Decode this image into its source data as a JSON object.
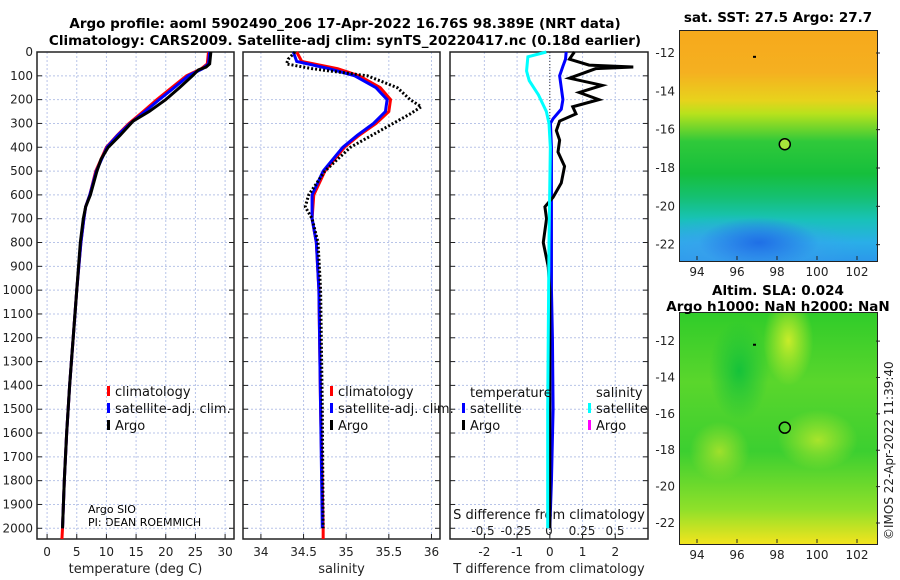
{
  "title": {
    "line1": "Argo profile: aoml 5902490_206 17-Apr-2022 16.76S 98.389E (NRT data)",
    "line2": "Climatology: CARS2009. Satellite-adj clim: synTS_20220417.nc (0.18d earlier)"
  },
  "credit": {
    "line1": "Argo SIO",
    "line2": "PI: DEAN ROEMMICH"
  },
  "copyright": "©IMOS 22-Apr-2022 11:39:40",
  "colors": {
    "climatology": "#ff0000",
    "satellite": "#0000ff",
    "argo": "#000000",
    "sal_satellite": "#00ffff",
    "sal_argo": "#ff00ff",
    "grid": "#b8c4e8"
  },
  "chart_data": [
    {
      "type": "line",
      "name": "temperature",
      "xlabel": "temperature (deg C)",
      "ylabel": "depth",
      "xlim": [
        -1.7,
        31.5
      ],
      "ylim": [
        2045,
        0
      ],
      "xticks": [
        0,
        5,
        10,
        15,
        20,
        25,
        30
      ],
      "yticks": [
        0,
        100,
        200,
        300,
        400,
        500,
        600,
        700,
        800,
        900,
        1000,
        1100,
        1200,
        1300,
        1400,
        1500,
        1600,
        1700,
        1800,
        1900,
        2000
      ],
      "legend": [
        "climatology",
        "satellite-adj. clim.",
        "Argo"
      ],
      "series": [
        {
          "name": "climatology",
          "depth": [
            0,
            50,
            70,
            100,
            150,
            200,
            250,
            300,
            350,
            400,
            500,
            600,
            650,
            700,
            800,
            1000,
            1200,
            1400,
            1600,
            1800,
            2000,
            2045
          ],
          "values": [
            27.2,
            27.0,
            26.0,
            23.5,
            21.0,
            18.5,
            16.2,
            13.8,
            11.8,
            10.0,
            8.2,
            7.2,
            6.5,
            6.2,
            5.7,
            5.0,
            4.4,
            3.8,
            3.3,
            2.9,
            2.6,
            2.5
          ]
        },
        {
          "name": "satellite-adj. clim.",
          "depth": [
            0,
            50,
            70,
            100,
            150,
            200,
            250,
            300,
            350,
            400,
            500,
            600,
            650,
            700,
            800,
            1000,
            1200,
            1400,
            1600,
            1800,
            2000
          ],
          "values": [
            27.4,
            27.2,
            26.2,
            23.8,
            21.4,
            18.9,
            16.5,
            14.0,
            11.9,
            10.1,
            8.3,
            7.2,
            6.5,
            6.2,
            5.7,
            5.0,
            4.4,
            3.8,
            3.3,
            2.9,
            2.6
          ]
        },
        {
          "name": "Argo",
          "depth": [
            0,
            50,
            63,
            75,
            100,
            150,
            200,
            250,
            290,
            350,
            400,
            450,
            500,
            600,
            650,
            700,
            800,
            1000,
            1200,
            1400,
            1600,
            1800,
            2000
          ],
          "values": [
            27.6,
            27.4,
            26.8,
            25.5,
            24.5,
            22.3,
            20.0,
            17.2,
            14.5,
            12.3,
            10.3,
            9.1,
            8.4,
            7.3,
            6.5,
            6.1,
            5.6,
            5.0,
            4.4,
            3.8,
            3.3,
            2.9,
            2.6
          ]
        }
      ]
    },
    {
      "type": "line",
      "name": "salinity",
      "xlabel": "salinity",
      "xlim": [
        33.79,
        36.1
      ],
      "ylim": [
        2045,
        0
      ],
      "xticks": [
        34,
        34.5,
        35,
        35.5,
        36
      ],
      "legend": [
        "climatology",
        "satellite-adj. clim.",
        "Argo"
      ],
      "series": [
        {
          "name": "climatology",
          "depth": [
            0,
            40,
            70,
            100,
            150,
            200,
            250,
            300,
            350,
            400,
            500,
            600,
            700,
            800,
            1000,
            1500,
            2000,
            2045
          ],
          "values": [
            34.42,
            34.48,
            34.9,
            35.15,
            35.4,
            35.52,
            35.5,
            35.35,
            35.15,
            34.98,
            34.75,
            34.62,
            34.6,
            34.65,
            34.68,
            34.7,
            34.73,
            34.73
          ]
        },
        {
          "name": "satellite-adj. clim.",
          "depth": [
            0,
            40,
            70,
            100,
            150,
            200,
            250,
            300,
            350,
            400,
            500,
            600,
            700,
            800,
            1000,
            1500,
            2000
          ],
          "values": [
            34.38,
            34.42,
            34.8,
            35.1,
            35.35,
            35.48,
            35.46,
            35.32,
            35.13,
            34.96,
            34.73,
            34.6,
            34.6,
            34.65,
            34.68,
            34.7,
            34.72
          ]
        },
        {
          "name": "Argo",
          "depth": [
            0,
            30,
            50,
            70,
            100,
            150,
            200,
            230,
            260,
            300,
            350,
            400,
            450,
            500,
            600,
            650,
            700,
            800,
            1000,
            1500,
            2000
          ],
          "values": [
            34.4,
            34.32,
            34.3,
            34.6,
            35.25,
            35.6,
            35.75,
            35.88,
            35.75,
            35.55,
            35.3,
            35.05,
            34.9,
            34.75,
            34.56,
            34.52,
            34.6,
            34.67,
            34.7,
            34.72,
            34.73
          ]
        }
      ]
    },
    {
      "type": "line",
      "name": "difference",
      "xlabel": "T difference from climatology",
      "x2label": "S difference from climatology",
      "xlim": [
        -3.05,
        3.0
      ],
      "ylim": [
        2045,
        0
      ],
      "xticks": [
        -2,
        -1,
        0,
        1,
        2
      ],
      "x2ticks": [
        "-0.5",
        "-0.25",
        "0",
        "0.25",
        "0.5"
      ],
      "x2values": [
        -0.5,
        -0.25,
        0,
        0.25,
        0.5
      ],
      "legend_temperature": {
        "title": "temperature",
        "items": [
          "satellite",
          "Argo"
        ]
      },
      "legend_salinity": {
        "title": "salinity",
        "items": [
          "satellite",
          "Argo"
        ]
      },
      "series": [
        {
          "name": "T satellite",
          "depth": [
            0,
            30,
            60,
            100,
            150,
            200,
            240,
            280,
            300,
            400,
            600,
            800,
            1000,
            1200,
            1500,
            1800,
            2000
          ],
          "values": [
            0.5,
            0.48,
            0.4,
            0.3,
            0.35,
            0.4,
            0.35,
            0.1,
            0.02,
            0.05,
            0.05,
            0.05,
            0.05,
            0.08,
            0.1,
            0.05,
            0.0
          ]
        },
        {
          "name": "T Argo",
          "depth": [
            0,
            30,
            55,
            63,
            70,
            90,
            110,
            140,
            170,
            200,
            230,
            260,
            290,
            330,
            370,
            420,
            480,
            550,
            610,
            650,
            700,
            800,
            900,
            1000,
            1200,
            1500,
            2000
          ],
          "values": [
            0.75,
            0.6,
            1.2,
            2.55,
            1.4,
            1.0,
            0.6,
            1.6,
            0.9,
            1.5,
            0.7,
            0.8,
            0.3,
            0.2,
            0.3,
            0.25,
            0.45,
            0.35,
            0.1,
            -0.15,
            -0.1,
            -0.2,
            -0.05,
            0.0,
            0.0,
            0.0,
            0.0
          ]
        },
        {
          "name": "S satellite",
          "depth": [
            0,
            20,
            80,
            120,
            180,
            250,
            300,
            400,
            800,
            1500,
            2000
          ],
          "values": [
            -0.02,
            -0.16,
            -0.17,
            -0.15,
            -0.08,
            -0.02,
            0.0,
            0.01,
            0.0,
            -0.01,
            -0.01
          ]
        }
      ]
    },
    {
      "type": "heatmap",
      "name": "sst-map",
      "title": "sat. SST: 27.5 Argo: 27.7",
      "xticks": [
        94,
        96,
        98,
        100,
        102
      ],
      "yticks": [
        -12,
        -14,
        -16,
        -18,
        -20,
        -22
      ],
      "xlim": [
        93.1,
        102.95
      ],
      "ylim": [
        -22.8,
        -10.8
      ],
      "marker": {
        "lon": 98.389,
        "lat": -16.76
      }
    },
    {
      "type": "heatmap",
      "name": "sla-map",
      "title": "Altim. SLA: 0.024",
      "subtitle": "Argo h1000: NaN h2000: NaN",
      "xticks": [
        94,
        96,
        98,
        100,
        102
      ],
      "yticks": [
        -12,
        -14,
        -16,
        -18,
        -20,
        -22
      ],
      "xlim": [
        93.1,
        102.95
      ],
      "ylim": [
        -23.1,
        -10.4
      ],
      "marker": {
        "lon": 98.389,
        "lat": -16.76
      }
    }
  ]
}
